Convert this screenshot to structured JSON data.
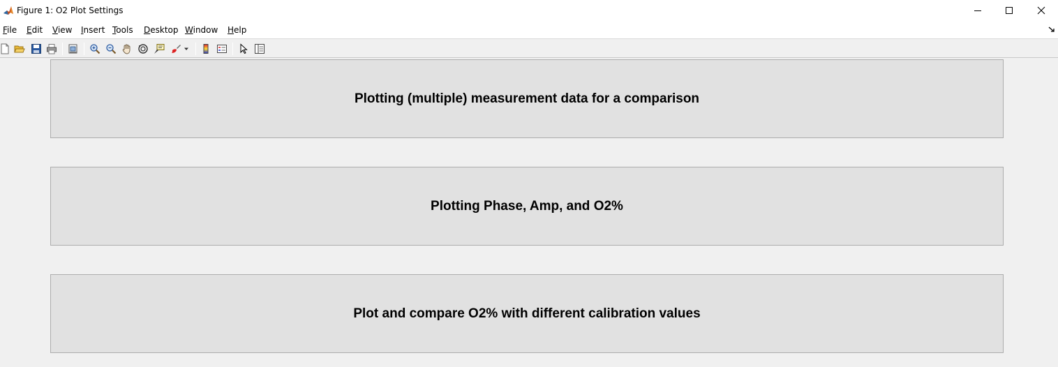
{
  "window": {
    "title": "Figure 1: O2 Plot Settings"
  },
  "menu": {
    "items": [
      {
        "first": "F",
        "rest": "ile"
      },
      {
        "first": "E",
        "rest": "dit"
      },
      {
        "first": "V",
        "rest": "iew"
      },
      {
        "first": "I",
        "rest": "nsert"
      },
      {
        "first": "T",
        "rest": "ools"
      },
      {
        "first": "D",
        "rest": "esktop"
      },
      {
        "first": "W",
        "rest": "indow"
      },
      {
        "first": "H",
        "rest": "elp"
      }
    ]
  },
  "toolbar": {
    "icons": [
      "new-file-icon",
      "open-file-icon",
      "save-icon",
      "print-icon",
      "print-preview-icon",
      "zoom-in-icon",
      "zoom-out-icon",
      "pan-hand-icon",
      "rotate-3d-icon",
      "data-cursor-icon",
      "brush-icon",
      "colorbar-icon",
      "legend-icon",
      "edit-plot-arrow-icon",
      "property-inspector-icon"
    ]
  },
  "panels": [
    {
      "label": "Plotting (multiple) measurement data for a comparison"
    },
    {
      "label": "Plotting Phase, Amp, and O2%"
    },
    {
      "label": "Plot and compare O2% with different calibration values"
    }
  ],
  "colors": {
    "panel_bg": "#e1e1e1",
    "window_bg": "#f0f0f0",
    "panel_border": "#adadad"
  }
}
